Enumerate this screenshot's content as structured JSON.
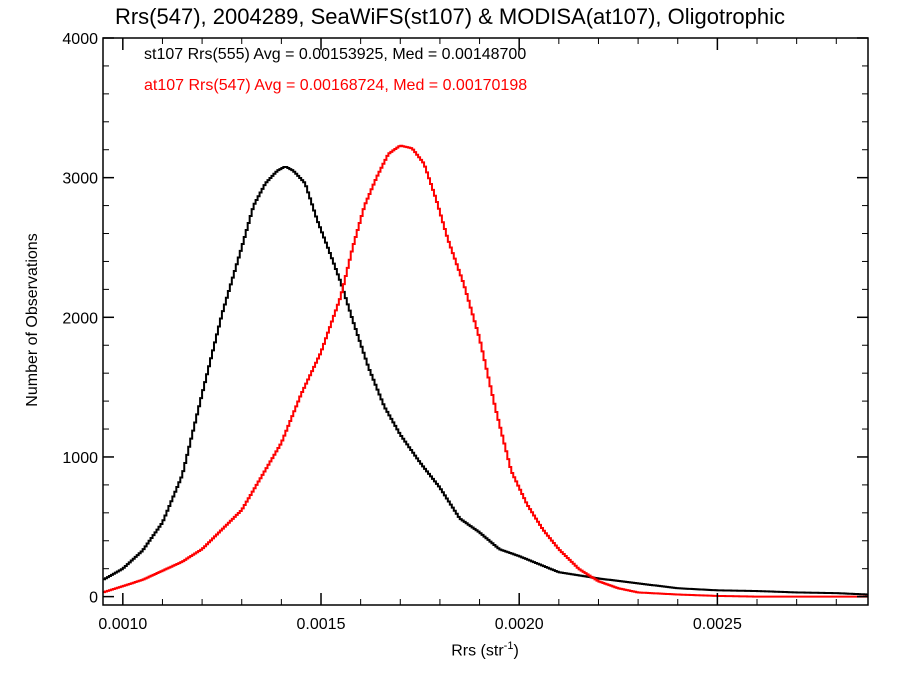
{
  "chart_data": {
    "type": "line",
    "title": "Rrs(547), 2004289, SeaWiFS(st107) & MODISA(at107), Oligotrophic",
    "xlabel_main": "Rrs (str",
    "xlabel_sup": "-1",
    "xlabel_close": ")",
    "ylabel": "Number of Observations",
    "xlim": [
      0.00095,
      0.00288
    ],
    "ylim": [
      -60,
      4000
    ],
    "xticks": [
      {
        "value": 0.001,
        "label": "0.0010"
      },
      {
        "value": 0.0015,
        "label": "0.0015"
      },
      {
        "value": 0.002,
        "label": "0.0020"
      },
      {
        "value": 0.0025,
        "label": "0.0025"
      }
    ],
    "yticks": [
      {
        "value": 0,
        "label": "0"
      },
      {
        "value": 1000,
        "label": "1000"
      },
      {
        "value": 2000,
        "label": "2000"
      },
      {
        "value": 3000,
        "label": "3000"
      },
      {
        "value": 4000,
        "label": "4000"
      }
    ],
    "grid": false,
    "legend_position": "top-left",
    "series": [
      {
        "legend": "st107 Rrs(555) Avg = 0.00153925, Med = 0.00148700",
        "color": "#000000",
        "x": [
          0.00095,
          0.001,
          0.00105,
          0.0011,
          0.00115,
          0.0012,
          0.00125,
          0.0013,
          0.00133,
          0.00136,
          0.00139,
          0.00141,
          0.00143,
          0.00146,
          0.00149,
          0.00152,
          0.00155,
          0.00158,
          0.00162,
          0.00166,
          0.0017,
          0.00175,
          0.0018,
          0.00185,
          0.0019,
          0.00195,
          0.002,
          0.0021,
          0.0022,
          0.0023,
          0.0024,
          0.0025,
          0.0026,
          0.0027,
          0.0028,
          0.00288
        ],
        "y": [
          120,
          200,
          330,
          530,
          870,
          1450,
          2020,
          2500,
          2800,
          2960,
          3050,
          3080,
          3050,
          2960,
          2700,
          2480,
          2250,
          1980,
          1640,
          1360,
          1160,
          960,
          780,
          560,
          460,
          340,
          290,
          175,
          130,
          95,
          60,
          45,
          40,
          30,
          25,
          15
        ]
      },
      {
        "legend": "at107 Rrs(547) Avg = 0.00168724, Med = 0.00170198",
        "color": "#ff0000",
        "x": [
          0.00095,
          0.00105,
          0.00115,
          0.0012,
          0.00125,
          0.0013,
          0.00135,
          0.0014,
          0.00145,
          0.0015,
          0.00155,
          0.00158,
          0.00161,
          0.00164,
          0.00167,
          0.0017,
          0.00173,
          0.00176,
          0.00179,
          0.00182,
          0.00186,
          0.0019,
          0.00194,
          0.00198,
          0.00202,
          0.00206,
          0.0021,
          0.00215,
          0.0022,
          0.00225,
          0.0023,
          0.0024,
          0.0025,
          0.0026,
          0.00288
        ],
        "y": [
          30,
          120,
          250,
          340,
          480,
          620,
          860,
          1100,
          1450,
          1750,
          2150,
          2500,
          2800,
          3000,
          3170,
          3230,
          3210,
          3100,
          2850,
          2560,
          2240,
          1850,
          1350,
          900,
          660,
          480,
          340,
          200,
          110,
          60,
          30,
          15,
          5,
          0,
          0
        ]
      }
    ]
  }
}
